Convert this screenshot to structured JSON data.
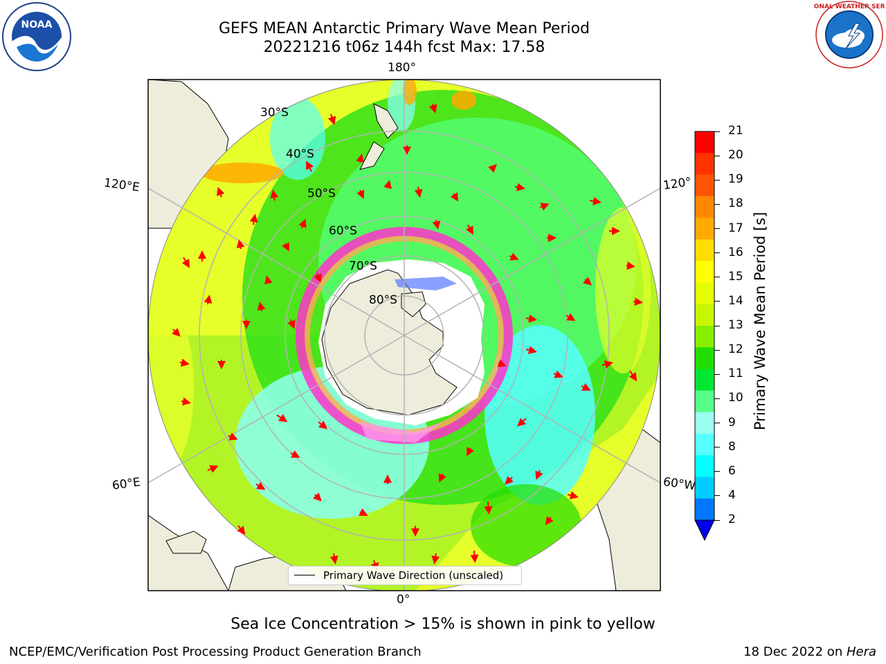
{
  "header": {
    "title_line1": "GEFS MEAN Antarctic Primary Wave Mean Period",
    "title_line2": "20221216 t06z 144h fcst   Max: 17.58"
  },
  "logos": {
    "left": {
      "icon": "noaa-logo-icon",
      "text": "NOAA"
    },
    "right": {
      "icon": "nws-logo-icon",
      "text": "NATIONAL WEATHER SERVICE"
    }
  },
  "map": {
    "longitude_labels": {
      "top": "180°",
      "bottom": "0°",
      "upper_left": "120°E",
      "lower_left": "60°E",
      "upper_right": "120°",
      "lower_right": "60°W"
    },
    "latitude_labels": [
      "30°S",
      "40°S",
      "50°S",
      "60°S",
      "70°S",
      "80°S"
    ],
    "legend_label": "Primary Wave Direction (unscaled)"
  },
  "colorbar": {
    "title": "Primary Wave Mean Period [s]",
    "ticks": [
      "21",
      "20",
      "19",
      "18",
      "17",
      "16",
      "15",
      "14",
      "13",
      "12",
      "11",
      "10",
      "9",
      "8",
      "6",
      "4",
      "2"
    ],
    "colors": [
      "#ff0000",
      "#ff3300",
      "#ff5500",
      "#ff8800",
      "#ffaa00",
      "#ffdd00",
      "#ffff00",
      "#e6ff00",
      "#c8f500",
      "#88ee00",
      "#22dd00",
      "#00e633",
      "#55ff88",
      "#99ffee",
      "#55ffff",
      "#00ffff",
      "#00ccff",
      "#0077ff"
    ],
    "extend_color": "#0000ee"
  },
  "caption": "Sea Ice Concentration > 15% is shown in pink to yellow",
  "footer": {
    "left": "NCEP/EMC/Verification Post Processing Product Generation Branch",
    "right_prefix": "18 Dec 2022 on ",
    "right_host": "Hera"
  }
}
